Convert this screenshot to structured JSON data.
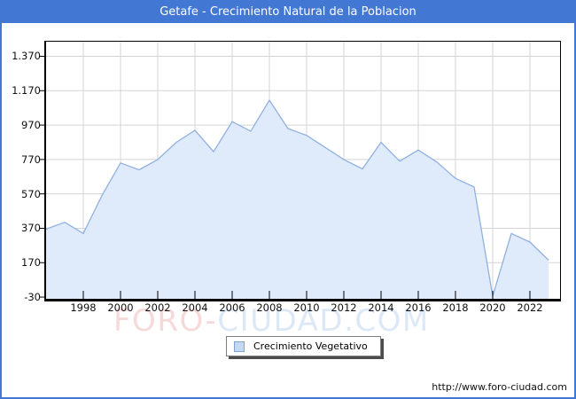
{
  "window": {
    "title": "Getafe - Crecimiento Natural de la Poblacion"
  },
  "colors": {
    "accent_blue": "#4377d4",
    "area_fill": "#dfebfa",
    "line_stroke": "#90b1e0",
    "grid": "#d4d4d4",
    "axis": "#000000",
    "legend_swatch_fill": "#c5daf2",
    "legend_swatch_border": "#7ea3d4",
    "watermark_pink": "#f6dada",
    "watermark_blue": "#dde8f7"
  },
  "legend": {
    "label": "Crecimiento Vegetativo"
  },
  "watermark": {
    "part1": "FORO-",
    "part2": "CIUDAD.COM"
  },
  "footer": {
    "url": "http://www.foro-ciudad.com"
  },
  "chart_data": {
    "type": "area",
    "title": "Getafe - Crecimiento Natural de la Poblacion",
    "xlabel": "",
    "ylabel": "",
    "grid": true,
    "legend_position": "bottom-center",
    "x": [
      1996,
      1997,
      1998,
      1999,
      2000,
      2001,
      2002,
      2003,
      2004,
      2005,
      2006,
      2007,
      2008,
      2009,
      2010,
      2011,
      2012,
      2013,
      2014,
      2015,
      2016,
      2017,
      2018,
      2019,
      2020,
      2021,
      2022,
      2023
    ],
    "values": [
      365,
      405,
      340,
      560,
      750,
      710,
      770,
      870,
      940,
      815,
      990,
      935,
      1115,
      950,
      910,
      840,
      770,
      715,
      870,
      760,
      825,
      755,
      660,
      610,
      -25,
      340,
      290,
      185
    ],
    "series_name": "Crecimiento Vegetativo",
    "xlim": [
      1996,
      2023.62
    ],
    "ylim": [
      -40,
      1455
    ],
    "x_ticks": [
      "1998",
      "2000",
      "2002",
      "2004",
      "2006",
      "2008",
      "2010",
      "2012",
      "2014",
      "2016",
      "2018",
      "2020",
      "2022"
    ],
    "y_ticks": [
      {
        "label": "1.370",
        "value": 1370
      },
      {
        "label": "1.170",
        "value": 1170
      },
      {
        "label": "970",
        "value": 970
      },
      {
        "label": "770",
        "value": 770
      },
      {
        "label": "570",
        "value": 570
      },
      {
        "label": "370",
        "value": 370
      },
      {
        "label": "170",
        "value": 170
      },
      {
        "label": "-30",
        "value": -30
      }
    ]
  }
}
